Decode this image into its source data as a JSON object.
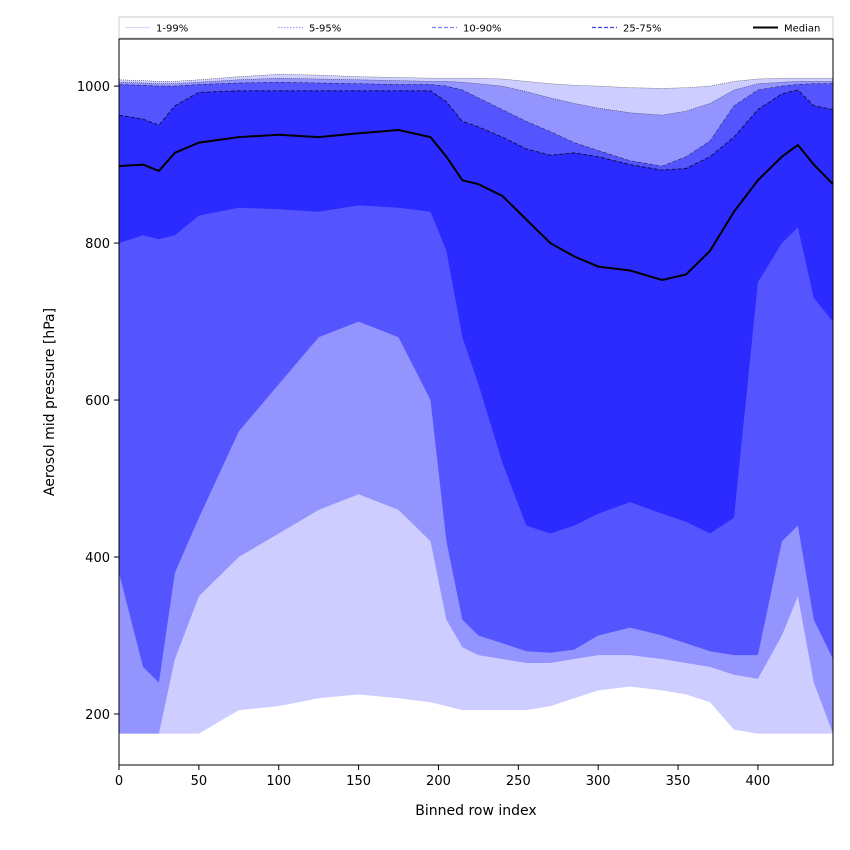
{
  "chart_data": {
    "type": "area",
    "xlabel": "Binned row index",
    "ylabel": "Aerosol mid pressure [hPa]",
    "xlim": [
      0,
      447
    ],
    "ylim": [
      135,
      1060
    ],
    "xticks": [
      0,
      50,
      100,
      150,
      200,
      250,
      300,
      350,
      400
    ],
    "yticks": [
      200,
      400,
      600,
      800,
      1000
    ],
    "legend_position": "top, spanning",
    "grid": false,
    "legend": [
      {
        "label": "1-99%",
        "color": "#d9d9ff",
        "dash": "solid"
      },
      {
        "label": "5-95%",
        "color": "#a0a0ff",
        "dash": "dotted"
      },
      {
        "label": "10-90%",
        "color": "#8080ff",
        "dash": "dashed"
      },
      {
        "label": "25-75%",
        "color": "#4040e0",
        "dash": "dashed"
      },
      {
        "label": "Median",
        "color": "#000000",
        "dash": "solid"
      }
    ],
    "x": [
      0,
      15,
      25,
      35,
      50,
      75,
      100,
      125,
      150,
      175,
      195,
      205,
      215,
      225,
      240,
      255,
      270,
      285,
      300,
      320,
      340,
      355,
      370,
      385,
      400,
      415,
      425,
      435,
      447
    ],
    "bands": [
      {
        "name": "1-99%",
        "color": "#cdcdff",
        "lower": [
          175,
          175,
          175,
          175,
          175,
          205,
          210,
          220,
          225,
          220,
          215,
          210,
          205,
          205,
          205,
          205,
          210,
          220,
          230,
          235,
          230,
          225,
          215,
          180,
          175,
          175,
          175,
          175,
          175
        ],
        "upper": [
          1008,
          1007,
          1006,
          1006,
          1008,
          1012,
          1015,
          1014,
          1012,
          1011,
          1010,
          1010,
          1010,
          1010,
          1009,
          1006,
          1003,
          1001,
          1000,
          998,
          997,
          998,
          1000,
          1006,
          1009,
          1010,
          1010,
          1010,
          1010
        ]
      },
      {
        "name": "5-95%",
        "color": "#9494ff",
        "lower": [
          175,
          175,
          175,
          270,
          350,
          400,
          430,
          460,
          480,
          460,
          420,
          320,
          285,
          275,
          270,
          265,
          265,
          270,
          275,
          275,
          270,
          265,
          260,
          250,
          245,
          300,
          350,
          240,
          175
        ],
        "upper": [
          1005,
          1004,
          1003,
          1003,
          1005,
          1008,
          1010,
          1009,
          1008,
          1007,
          1006,
          1006,
          1005,
          1003,
          1000,
          993,
          985,
          978,
          972,
          966,
          963,
          968,
          978,
          995,
          1003,
          1005,
          1006,
          1006,
          1006
        ]
      },
      {
        "name": "10-90%",
        "color": "#5555ff",
        "lower": [
          380,
          260,
          240,
          380,
          450,
          560,
          620,
          680,
          700,
          680,
          600,
          420,
          320,
          300,
          290,
          280,
          278,
          282,
          300,
          310,
          300,
          290,
          280,
          275,
          275,
          420,
          440,
          320,
          270
        ],
        "upper": [
          1002,
          1001,
          1000,
          1000,
          1002,
          1004,
          1005,
          1004,
          1003,
          1002,
          1002,
          1000,
          995,
          985,
          970,
          955,
          942,
          928,
          918,
          905,
          898,
          910,
          930,
          975,
          995,
          1000,
          1002,
          1003,
          1003
        ]
      },
      {
        "name": "25-75%",
        "color": "#2b2bff",
        "lower": [
          800,
          810,
          805,
          810,
          835,
          845,
          843,
          840,
          848,
          845,
          840,
          790,
          680,
          620,
          520,
          440,
          430,
          440,
          455,
          470,
          455,
          445,
          430,
          450,
          750,
          800,
          820,
          730,
          700
        ],
        "upper": [
          963,
          958,
          950,
          975,
          992,
          994,
          994,
          994,
          994,
          994,
          994,
          980,
          955,
          948,
          935,
          920,
          912,
          915,
          910,
          900,
          893,
          895,
          910,
          935,
          970,
          990,
          995,
          975,
          970
        ]
      }
    ],
    "median": [
      898,
      900,
      892,
      915,
      928,
      935,
      938,
      935,
      940,
      944,
      935,
      910,
      880,
      875,
      860,
      830,
      800,
      783,
      770,
      765,
      753,
      760,
      790,
      840,
      880,
      910,
      925,
      900,
      875
    ]
  }
}
